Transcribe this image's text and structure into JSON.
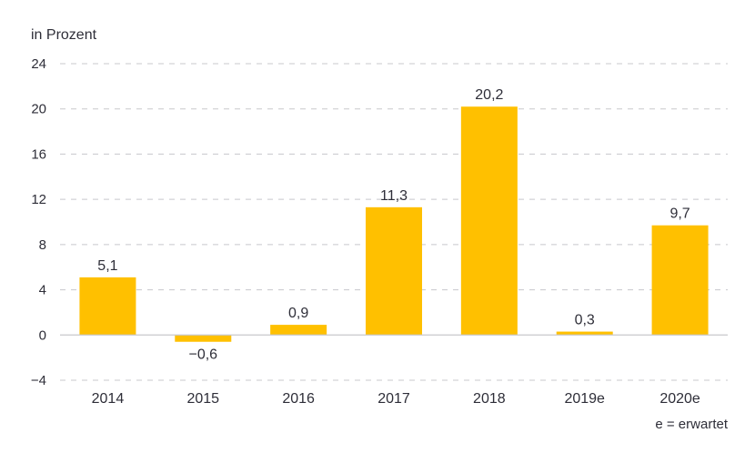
{
  "chart_data": {
    "type": "bar",
    "ylabel": "in Prozent",
    "categories": [
      "2014",
      "2015",
      "2016",
      "2017",
      "2018",
      "2019e",
      "2020e"
    ],
    "values": [
      5.1,
      -0.6,
      0.9,
      11.3,
      20.2,
      0.3,
      9.7
    ],
    "value_labels": [
      "5,1",
      "−0,6",
      "0,9",
      "11,3",
      "20,2",
      "0,3",
      "9,7"
    ],
    "yticks": [
      24,
      20,
      16,
      12,
      8,
      4,
      0,
      -4
    ],
    "ytick_labels": [
      "24",
      "20",
      "16",
      "12",
      "8",
      "4",
      "0",
      "−4"
    ],
    "ylim": [
      -4,
      24
    ],
    "grid": true,
    "bar_color": "#ffc000",
    "footnote": "e = erwartet"
  }
}
